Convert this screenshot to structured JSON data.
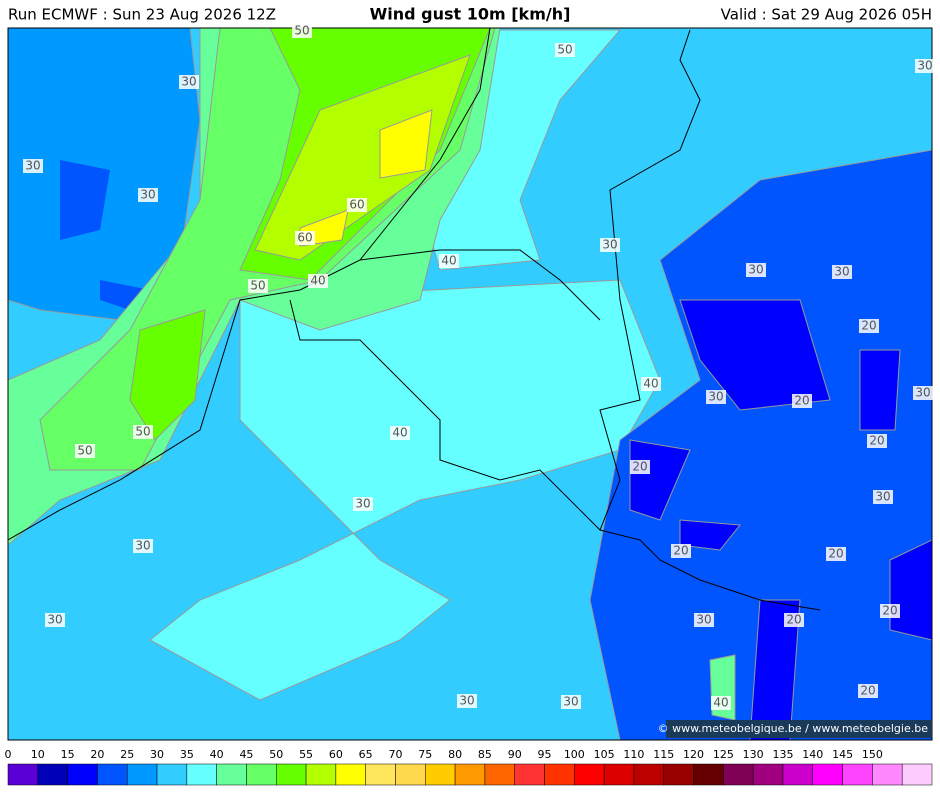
{
  "header": {
    "run": "Run ECMWF : Sun 23 Aug 2026 12Z",
    "title": "Wind gust 10m [km/h]",
    "valid": "Valid : Sat 29 Aug 2026 05H"
  },
  "contour_labels": [
    "50",
    "50",
    "30",
    "30",
    "30",
    "30",
    "60",
    "60",
    "30",
    "40",
    "30",
    "30",
    "50",
    "40",
    "20",
    "40",
    "30",
    "20",
    "30",
    "50",
    "40",
    "20",
    "50",
    "20",
    "30",
    "30",
    "30",
    "20",
    "20",
    "30",
    "30",
    "20",
    "20",
    "40",
    "30",
    "30",
    "20"
  ],
  "credit": "© www.meteobelgique.be / www.meteobelgie.be",
  "legend": {
    "ticks": [
      0,
      10,
      15,
      20,
      25,
      30,
      35,
      40,
      45,
      50,
      55,
      60,
      65,
      70,
      75,
      80,
      85,
      90,
      95,
      100,
      105,
      110,
      115,
      120,
      125,
      130,
      135,
      140,
      145,
      150
    ],
    "colors": [
      "#5a00d6",
      "#0000b8",
      "#0000ff",
      "#0055ff",
      "#0099ff",
      "#33ccff",
      "#66ffff",
      "#66ff99",
      "#66ff66",
      "#66ff00",
      "#b3ff00",
      "#ffff00",
      "#ffe65c",
      "#ffd94d",
      "#ffcc00",
      "#ff9900",
      "#ff6600",
      "#ff3333",
      "#ff3300",
      "#ff0000",
      "#dd0000",
      "#bb0000",
      "#990000",
      "#660000",
      "#800055",
      "#a00080",
      "#cc00cc",
      "#ff00ff",
      "#ff44ff",
      "#ff88ff",
      "#ffccff"
    ]
  }
}
